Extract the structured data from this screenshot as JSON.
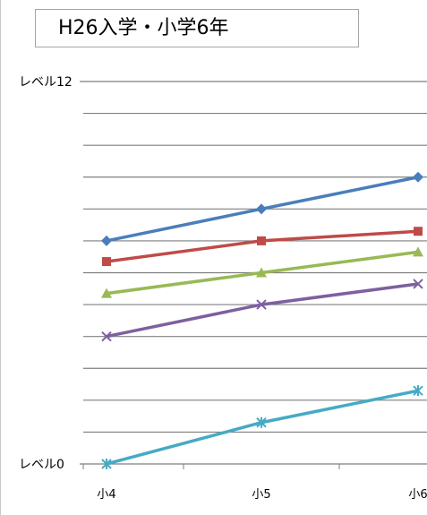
{
  "chart_data": {
    "type": "line",
    "title": "H26入学・小学6年",
    "xlabel": "",
    "ylabel": "",
    "categories": [
      "小4",
      "小5",
      "小6"
    ],
    "ylim": [
      0,
      12
    ],
    "ytick_labels": {
      "top": "レベル12",
      "bottom": "レベル0"
    },
    "grid": true,
    "legend": "none",
    "series": [
      {
        "color": "#4a7ebb",
        "marker": "diamond",
        "values": [
          7,
          8,
          9
        ]
      },
      {
        "color": "#be4b48",
        "marker": "square",
        "values": [
          6.35,
          7,
          7.3
        ]
      },
      {
        "color": "#98b954",
        "marker": "triangle",
        "values": [
          5.35,
          6,
          6.65
        ]
      },
      {
        "color": "#7d60a0",
        "marker": "x",
        "values": [
          4,
          5,
          5.65
        ]
      },
      {
        "color": "#46aac5",
        "marker": "star",
        "values": [
          0,
          1.3,
          2.3
        ]
      }
    ]
  }
}
